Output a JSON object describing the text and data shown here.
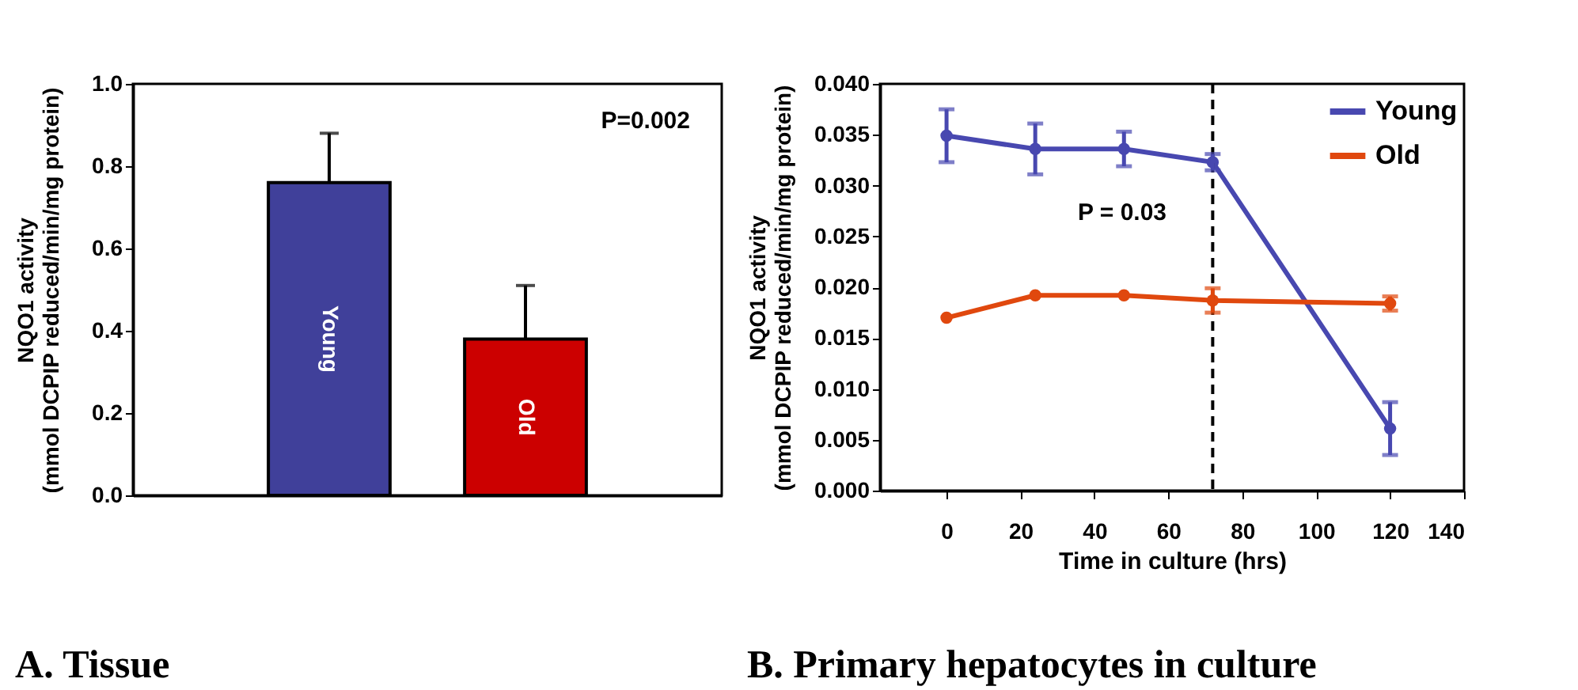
{
  "chart_data": [
    {
      "type": "bar",
      "title": "A. Tissue",
      "ylabel": "NQO1 activity\n(mmol DCPIP reduced/min/mg protein)",
      "categories": [
        "Young",
        "Old"
      ],
      "values": [
        0.76,
        0.38
      ],
      "colors": [
        "#40409a",
        "#cc0000"
      ],
      "errors": [
        [
          0.76,
          0.88
        ],
        [
          0.38,
          0.51
        ]
      ],
      "ylim": [
        0,
        1
      ],
      "yticks": [
        {
          "value": 0,
          "label": "0.0"
        },
        {
          "value": 0.2,
          "label": "0.2"
        },
        {
          "value": 0.4,
          "label": "0.4"
        },
        {
          "value": 0.6,
          "label": "0.6"
        },
        {
          "value": 0.8,
          "label": "0.8"
        },
        {
          "value": 1,
          "label": "1.0"
        }
      ],
      "annotations": [
        "P=0.002"
      ]
    },
    {
      "type": "line",
      "title": "B. Primary hepatocytes in culture",
      "xlabel": "Time in culture (hrs)",
      "ylabel": "NQO1 activity\n(mmol DCPIP reduced/min/mg protein)",
      "x": [
        0,
        24,
        48,
        72,
        120
      ],
      "series": [
        {
          "name": "Young",
          "color": "#4848b0",
          "values": [
            0.0349,
            0.0336,
            0.0336,
            0.0323,
            0.0061
          ],
          "errors": [
            0.0026,
            0.0025,
            0.0017,
            0.0008,
            0.0026
          ]
        },
        {
          "name": "Old",
          "color": "#e0480e",
          "values": [
            0.017,
            0.0192,
            0.0192,
            0.0187,
            0.0184
          ],
          "errors": [
            null,
            null,
            null,
            0.0012,
            0.0007
          ]
        }
      ],
      "xlim": [
        -18,
        140
      ],
      "xticks": [
        0,
        20,
        40,
        60,
        80,
        100,
        120,
        140
      ],
      "ylim": [
        0,
        0.04
      ],
      "yticks": [
        {
          "value": 0,
          "label": "0.000"
        },
        {
          "value": 0.005,
          "label": "0.005"
        },
        {
          "value": 0.01,
          "label": "0.010"
        },
        {
          "value": 0.015,
          "label": "0.015"
        },
        {
          "value": 0.02,
          "label": "0.020"
        },
        {
          "value": 0.025,
          "label": "0.025"
        },
        {
          "value": 0.03,
          "label": "0.030"
        },
        {
          "value": 0.035,
          "label": "0.035"
        },
        {
          "value": 0.04,
          "label": "0.040"
        }
      ],
      "ref_lines": [
        {
          "axis": "x",
          "value": 72,
          "color": "#000000",
          "line_style": "dashed"
        }
      ],
      "annotations": [
        "P = 0.03"
      ],
      "legend": "top right",
      "marker": "circle"
    }
  ]
}
